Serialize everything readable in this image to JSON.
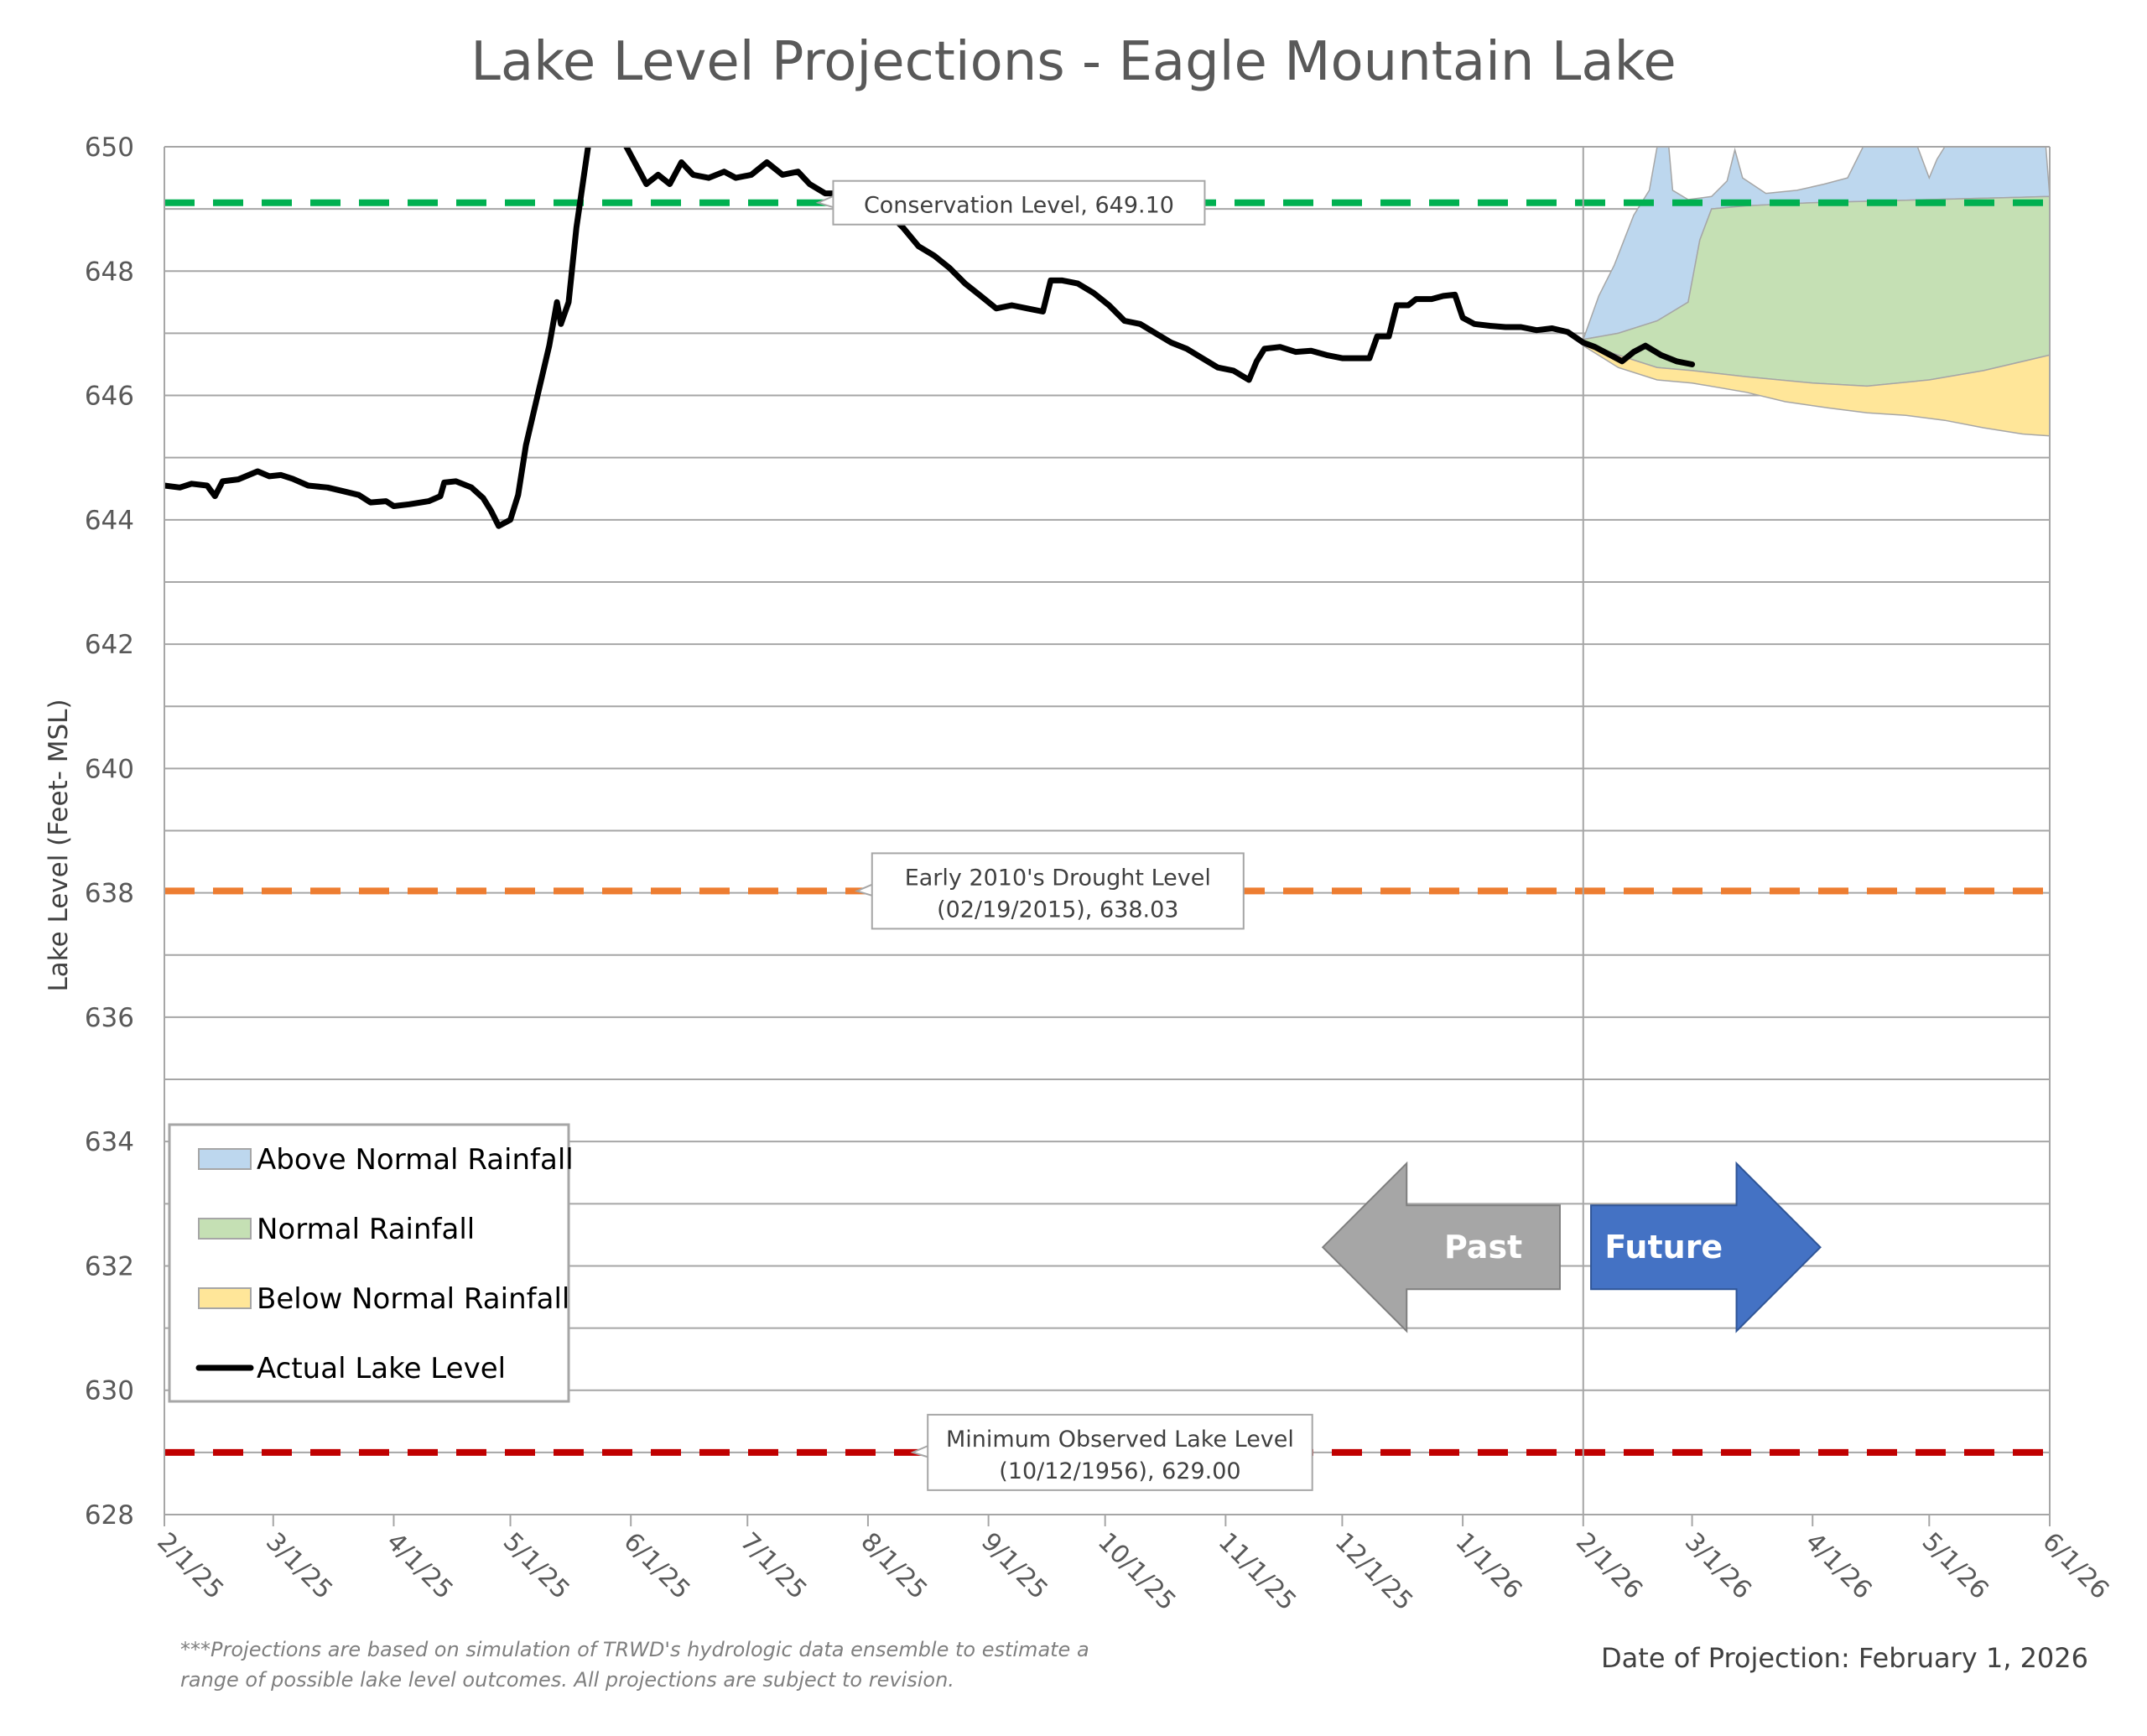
{
  "chart_data": {
    "type": "line",
    "title": "Lake Level Projections - Eagle Mountain Lake",
    "ylabel": "Lake Level (Feet- MSL)",
    "xlabel": "",
    "ylim": [
      628,
      650
    ],
    "yticks": [
      628,
      630,
      632,
      634,
      636,
      638,
      640,
      642,
      644,
      646,
      648,
      650
    ],
    "grid": true,
    "legend_position": "bottom-left",
    "x_axis": {
      "type": "date",
      "range": [
        "2025-02-01",
        "2026-06-01"
      ],
      "ticks": [
        {
          "date": "2025-02-01",
          "label": "2/1/25"
        },
        {
          "date": "2025-03-01",
          "label": "3/1/25"
        },
        {
          "date": "2025-04-01",
          "label": "4/1/25"
        },
        {
          "date": "2025-05-01",
          "label": "5/1/25"
        },
        {
          "date": "2025-06-01",
          "label": "6/1/25"
        },
        {
          "date": "2025-07-01",
          "label": "7/1/25"
        },
        {
          "date": "2025-08-01",
          "label": "8/1/25"
        },
        {
          "date": "2025-09-01",
          "label": "9/1/25"
        },
        {
          "date": "2025-10-01",
          "label": "10/1/25"
        },
        {
          "date": "2025-11-01",
          "label": "11/1/25"
        },
        {
          "date": "2025-12-01",
          "label": "12/1/25"
        },
        {
          "date": "2026-01-01",
          "label": "1/1/26"
        },
        {
          "date": "2026-02-01",
          "label": "2/1/26"
        },
        {
          "date": "2026-03-01",
          "label": "3/1/26"
        },
        {
          "date": "2026-04-01",
          "label": "4/1/26"
        },
        {
          "date": "2026-05-01",
          "label": "5/1/26"
        },
        {
          "date": "2026-06-01",
          "label": "6/1/26"
        }
      ]
    },
    "projection_start": "2026-02-01",
    "reference_lines": [
      {
        "name": "conservation",
        "value": 649.1,
        "color": "#00b050",
        "label": "Conservation Level, 649.10",
        "label_date": "2025-08-01"
      },
      {
        "name": "drought",
        "value": 638.03,
        "color": "#ed7d31",
        "label": "Early 2010's Drought Level\n(02/19/2015), 638.03",
        "label_date": "2025-08-11"
      },
      {
        "name": "minimum",
        "value": 629.0,
        "color": "#c00000",
        "label": "Minimum Observed Lake Level\n(10/12/1956), 629.00",
        "label_date": "2025-08-27"
      }
    ],
    "series": [
      {
        "name": "Actual Lake Level",
        "color": "#000000",
        "points": [
          [
            "2025-02-01",
            644.55
          ],
          [
            "2025-02-05",
            644.52
          ],
          [
            "2025-02-08",
            644.58
          ],
          [
            "2025-02-12",
            644.55
          ],
          [
            "2025-02-14",
            644.38
          ],
          [
            "2025-02-16",
            644.62
          ],
          [
            "2025-02-20",
            644.65
          ],
          [
            "2025-02-25",
            644.78
          ],
          [
            "2025-02-28",
            644.7
          ],
          [
            "2025-03-03",
            644.72
          ],
          [
            "2025-03-06",
            644.66
          ],
          [
            "2025-03-10",
            644.55
          ],
          [
            "2025-03-15",
            644.52
          ],
          [
            "2025-03-19",
            644.46
          ],
          [
            "2025-03-23",
            644.4
          ],
          [
            "2025-03-26",
            644.28
          ],
          [
            "2025-03-30",
            644.3
          ],
          [
            "2025-04-01",
            644.22
          ],
          [
            "2025-04-05",
            644.25
          ],
          [
            "2025-04-10",
            644.3
          ],
          [
            "2025-04-13",
            644.38
          ],
          [
            "2025-04-14",
            644.6
          ],
          [
            "2025-04-17",
            644.62
          ],
          [
            "2025-04-21",
            644.52
          ],
          [
            "2025-04-24",
            644.35
          ],
          [
            "2025-04-26",
            644.15
          ],
          [
            "2025-04-28",
            643.9
          ],
          [
            "2025-05-01",
            644.0
          ],
          [
            "2025-05-03",
            644.4
          ],
          [
            "2025-05-05",
            645.2
          ],
          [
            "2025-05-08",
            646.0
          ],
          [
            "2025-05-11",
            646.8
          ],
          [
            "2025-05-13",
            647.5
          ],
          [
            "2025-05-14",
            647.15
          ],
          [
            "2025-05-16",
            647.5
          ],
          [
            "2025-05-18",
            648.7
          ],
          [
            "2025-05-21",
            650.0
          ],
          [
            "2025-05-24",
            650.4
          ],
          [
            "2025-05-27",
            650.05
          ],
          [
            "2025-05-30",
            650.1
          ],
          [
            "2025-06-02",
            649.75
          ],
          [
            "2025-06-05",
            649.4
          ],
          [
            "2025-06-08",
            649.55
          ],
          [
            "2025-06-11",
            649.4
          ],
          [
            "2025-06-14",
            649.75
          ],
          [
            "2025-06-17",
            649.55
          ],
          [
            "2025-06-21",
            649.5
          ],
          [
            "2025-06-25",
            649.6
          ],
          [
            "2025-06-28",
            649.5
          ],
          [
            "2025-07-02",
            649.55
          ],
          [
            "2025-07-06",
            649.75
          ],
          [
            "2025-07-10",
            649.55
          ],
          [
            "2025-07-14",
            649.6
          ],
          [
            "2025-07-17",
            649.4
          ],
          [
            "2025-07-21",
            649.25
          ],
          [
            "2025-07-25",
            649.25
          ],
          [
            "2025-07-29",
            649.25
          ],
          [
            "2025-08-02",
            649.1
          ],
          [
            "2025-08-06",
            648.95
          ],
          [
            "2025-08-10",
            648.7
          ],
          [
            "2025-08-14",
            648.4
          ],
          [
            "2025-08-18",
            648.25
          ],
          [
            "2025-08-22",
            648.05
          ],
          [
            "2025-08-26",
            647.8
          ],
          [
            "2025-08-30",
            647.6
          ],
          [
            "2025-09-03",
            647.4
          ],
          [
            "2025-09-07",
            647.45
          ],
          [
            "2025-09-11",
            647.4
          ],
          [
            "2025-09-15",
            647.35
          ],
          [
            "2025-09-17",
            647.85
          ],
          [
            "2025-09-20",
            647.85
          ],
          [
            "2025-09-24",
            647.8
          ],
          [
            "2025-09-28",
            647.65
          ],
          [
            "2025-10-02",
            647.45
          ],
          [
            "2025-10-06",
            647.2
          ],
          [
            "2025-10-10",
            647.15
          ],
          [
            "2025-10-14",
            647.0
          ],
          [
            "2025-10-18",
            646.85
          ],
          [
            "2025-10-22",
            646.75
          ],
          [
            "2025-10-26",
            646.6
          ],
          [
            "2025-10-30",
            646.45
          ],
          [
            "2025-11-03",
            646.4
          ],
          [
            "2025-11-07",
            646.25
          ],
          [
            "2025-11-09",
            646.55
          ],
          [
            "2025-11-11",
            646.75
          ],
          [
            "2025-11-15",
            646.78
          ],
          [
            "2025-11-19",
            646.7
          ],
          [
            "2025-11-23",
            646.72
          ],
          [
            "2025-11-27",
            646.65
          ],
          [
            "2025-12-01",
            646.6
          ],
          [
            "2025-12-05",
            646.6
          ],
          [
            "2025-12-08",
            646.6
          ],
          [
            "2025-12-10",
            646.95
          ],
          [
            "2025-12-13",
            646.95
          ],
          [
            "2025-12-15",
            647.45
          ],
          [
            "2025-12-18",
            647.45
          ],
          [
            "2025-12-20",
            647.55
          ],
          [
            "2025-12-24",
            647.55
          ],
          [
            "2025-12-27",
            647.6
          ],
          [
            "2025-12-30",
            647.62
          ],
          [
            "2026-01-01",
            647.25
          ],
          [
            "2026-01-04",
            647.15
          ],
          [
            "2026-01-08",
            647.12
          ],
          [
            "2026-01-12",
            647.1
          ],
          [
            "2026-01-16",
            647.1
          ],
          [
            "2026-01-20",
            647.05
          ],
          [
            "2026-01-24",
            647.08
          ],
          [
            "2026-01-28",
            647.02
          ],
          [
            "2026-02-01",
            646.85
          ],
          [
            "2026-02-04",
            646.78
          ],
          [
            "2026-02-08",
            646.65
          ],
          [
            "2026-02-11",
            646.55
          ],
          [
            "2026-02-14",
            646.7
          ],
          [
            "2026-02-17",
            646.8
          ],
          [
            "2026-02-21",
            646.65
          ],
          [
            "2026-02-25",
            646.55
          ],
          [
            "2026-03-01",
            646.5
          ]
        ]
      }
    ],
    "bands": [
      {
        "name": "Above Normal Rainfall",
        "fill": "#bdd7ee",
        "stroke": "#a6a6a6",
        "upper": [
          [
            "2026-02-01",
            646.9
          ],
          [
            "2026-02-05",
            647.6
          ],
          [
            "2026-02-09",
            648.1
          ],
          [
            "2026-02-14",
            648.9
          ],
          [
            "2026-02-18",
            649.3
          ],
          [
            "2026-02-20",
            650.0
          ],
          [
            "2026-02-23",
            650.0
          ],
          [
            "2026-02-24",
            649.3
          ],
          [
            "2026-02-28",
            649.15
          ],
          [
            "2026-03-06",
            649.2
          ],
          [
            "2026-03-10",
            649.45
          ],
          [
            "2026-03-12",
            649.95
          ],
          [
            "2026-03-14",
            649.5
          ],
          [
            "2026-03-20",
            649.25
          ],
          [
            "2026-03-28",
            649.3
          ],
          [
            "2026-04-04",
            649.4
          ],
          [
            "2026-04-10",
            649.5
          ],
          [
            "2026-04-14",
            650.0
          ],
          [
            "2026-04-28",
            650.0
          ],
          [
            "2026-05-01",
            649.5
          ],
          [
            "2026-05-03",
            649.8
          ],
          [
            "2026-05-05",
            650.0
          ],
          [
            "2026-05-31",
            650.0
          ],
          [
            "2026-06-01",
            649.2
          ]
        ],
        "lower": [
          [
            "2026-02-01",
            646.9
          ],
          [
            "2026-02-10",
            647.0
          ],
          [
            "2026-02-20",
            647.2
          ],
          [
            "2026-02-28",
            647.5
          ],
          [
            "2026-03-03",
            648.5
          ],
          [
            "2026-03-06",
            649.0
          ],
          [
            "2026-03-15",
            649.05
          ],
          [
            "2026-04-01",
            649.1
          ],
          [
            "2026-05-01",
            649.15
          ],
          [
            "2026-06-01",
            649.2
          ]
        ]
      },
      {
        "name": "Normal Rainfall",
        "fill": "#c5e0b4",
        "stroke": "#a6a6a6",
        "upper": [
          [
            "2026-02-01",
            646.9
          ],
          [
            "2026-02-10",
            647.0
          ],
          [
            "2026-02-20",
            647.2
          ],
          [
            "2026-02-28",
            647.5
          ],
          [
            "2026-03-03",
            648.5
          ],
          [
            "2026-03-06",
            649.0
          ],
          [
            "2026-03-15",
            649.05
          ],
          [
            "2026-04-01",
            649.1
          ],
          [
            "2026-05-01",
            649.15
          ],
          [
            "2026-06-01",
            649.2
          ]
        ],
        "lower": [
          [
            "2026-02-01",
            646.85
          ],
          [
            "2026-02-10",
            646.65
          ],
          [
            "2026-02-20",
            646.45
          ],
          [
            "2026-03-01",
            646.4
          ],
          [
            "2026-03-15",
            646.3
          ],
          [
            "2026-04-01",
            646.2
          ],
          [
            "2026-04-15",
            646.15
          ],
          [
            "2026-05-01",
            646.25
          ],
          [
            "2026-05-15",
            646.4
          ],
          [
            "2026-06-01",
            646.65
          ]
        ]
      },
      {
        "name": "Below Normal Rainfall",
        "fill": "#ffe699",
        "stroke": "#a6a6a6",
        "upper": [
          [
            "2026-02-01",
            646.85
          ],
          [
            "2026-02-10",
            646.65
          ],
          [
            "2026-02-20",
            646.45
          ],
          [
            "2026-03-01",
            646.4
          ],
          [
            "2026-03-15",
            646.3
          ],
          [
            "2026-04-01",
            646.2
          ],
          [
            "2026-04-15",
            646.15
          ],
          [
            "2026-05-01",
            646.25
          ],
          [
            "2026-05-15",
            646.4
          ],
          [
            "2026-06-01",
            646.65
          ]
        ],
        "lower": [
          [
            "2026-02-01",
            646.8
          ],
          [
            "2026-02-10",
            646.45
          ],
          [
            "2026-02-20",
            646.25
          ],
          [
            "2026-03-01",
            646.2
          ],
          [
            "2026-03-15",
            646.05
          ],
          [
            "2026-03-25",
            645.9
          ],
          [
            "2026-04-05",
            645.8
          ],
          [
            "2026-04-15",
            645.72
          ],
          [
            "2026-04-25",
            645.68
          ],
          [
            "2026-05-05",
            645.6
          ],
          [
            "2026-05-15",
            645.48
          ],
          [
            "2026-05-25",
            645.38
          ],
          [
            "2026-06-01",
            645.35
          ]
        ]
      }
    ],
    "legend": [
      {
        "label": "Above Normal Rainfall",
        "kind": "patch",
        "color": "#bdd7ee"
      },
      {
        "label": "Normal Rainfall",
        "kind": "patch",
        "color": "#c5e0b4"
      },
      {
        "label": "Below Normal Rainfall",
        "kind": "patch",
        "color": "#ffe699"
      },
      {
        "label": "Actual Lake Level",
        "kind": "line",
        "color": "#000000"
      }
    ],
    "arrows": [
      {
        "label": "Past",
        "color": "#a6a6a6",
        "direction": "left"
      },
      {
        "label": "Future",
        "color": "#4472c4",
        "direction": "right"
      }
    ],
    "footnote": "***Projections are based on simulation of TRWD's hydrologic data ensemble to estimate a\nrange of possible lake level outcomes.  All projections are subject to revision.",
    "projection_date": "Date of Projection: February 1, 2026"
  }
}
